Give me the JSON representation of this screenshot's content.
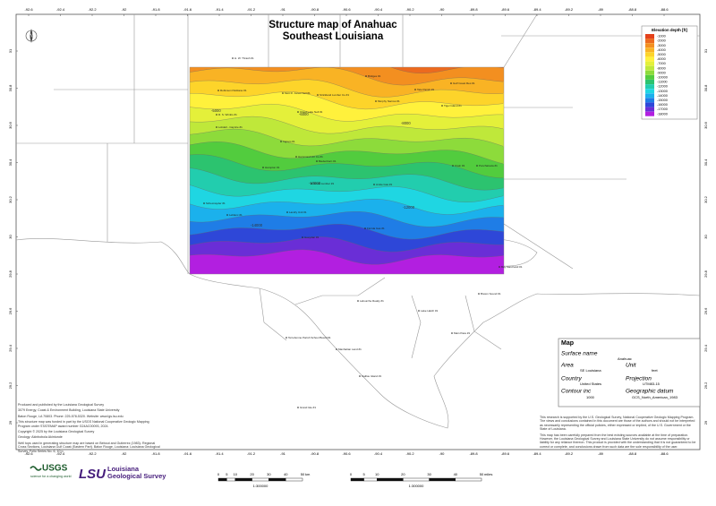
{
  "map": {
    "title": "Structure map of Anahuac",
    "subtitle": "Southeast Louisiana",
    "north": "N",
    "lon_ticks": [
      -92.6,
      -92.4,
      -92.2,
      -92,
      -91.8,
      -91.6,
      -91.4,
      -91.2,
      -91,
      -90.8,
      -90.6,
      -90.4,
      -90.2,
      -90,
      -89.8,
      -89.6,
      -89.4,
      -89.2,
      -89,
      -88.8,
      -88.6
    ],
    "lat_ticks": [
      31,
      30.8,
      30.6,
      30.4,
      30.2,
      30,
      29.8,
      29.6,
      29.4,
      29.2,
      29
    ],
    "contour_labels": [
      -5000,
      -6000,
      -8000,
      -10000,
      -12000,
      -14000
    ],
    "wells": [
      "H. W. Thrash #1",
      "Robinson Parklane #1",
      "Mott R. Jones Nell #1",
      "Strickland Lumber Co #1",
      "Bridges #1",
      "Tate Parish #1",
      "Gulf Coast Res #1",
      "R. S. Wimbs #1",
      "Cloud Lake Nell #1",
      "Murphy Narrow #1",
      "Tiger Island #1",
      "Lobdell - Caprice #1",
      "Ingram #1",
      "Hampton #1",
      "Biedenharn #1",
      "Hammond Lbr Co #1",
      "Crain #1",
      "Ponchatoula #1",
      "Jones Lumber #1",
      "Amite Gas #1",
      "Landry Unit #1",
      "Schexnayder #1",
      "Leblanc #1",
      "Florida Gas #1",
      "Gueydan #1",
      "Bay Marchand #1",
      "Breton Sound #1",
      "Lake Hatch #1",
      "Lafourche Realty #1",
      "Terrebonne Parish School Board #1",
      "Manhattan Land #1",
      "Caillou Island #1",
      "Grand Isle #1",
      "Main Pass #1"
    ]
  },
  "legend": {
    "title": "Elevation depth [ft]",
    "levels": [
      -1000,
      -2000,
      -3000,
      -4000,
      -5000,
      -6000,
      -7000,
      -8000,
      -9000,
      -10000,
      -11000,
      -12000,
      -13000,
      -14000,
      -15000,
      -16000,
      -17000,
      -18000
    ],
    "colors": [
      "#e4421c",
      "#ec6a1e",
      "#f38f20",
      "#f9b324",
      "#fdd42a",
      "#fff13c",
      "#e4f03a",
      "#bfe83a",
      "#8ddb3b",
      "#52cc3e",
      "#2cc36f",
      "#22cdae",
      "#1fd6e2",
      "#1bb1ec",
      "#1f7de6",
      "#2e47d8",
      "#6a2ed6",
      "#b21fe0"
    ]
  },
  "info": {
    "heading": "Map",
    "surface_label": "Surface name",
    "surface": "Anahuac",
    "area_label": "Area",
    "area": "SE Louisiana",
    "unit_label": "Unit",
    "unit": "feet",
    "country_label": "Country",
    "country": "United States",
    "projection_label": "Projection",
    "projection": "UTM83-15",
    "contour_label": "Contour inc",
    "contour": "1000",
    "datum_label": "Geographic datum",
    "datum": "GCS_North_American_1983"
  },
  "credits": [
    "Produced and published by the Louisiana Geological Survey",
    "3079 Energy, Coast & Environment Building, Louisiana State University",
    "Baton Rouge, LA 70803. Phone: 225-578-5320. Website: www.lgs.lsu.edu",
    "This structure map was funded in part by the USGS National Cooperative Geologic Mapping Program under STATEMAP award number G24AC00093, 2024.",
    "Copyright © 2025 by the Louisiana Geological Survey",
    "Geology: Akinbobola Akintunde",
    "Well tops used in generating structure map are based on Bebout and Gutierrez (1983)- Regional Cross Sections, Louisiana Gulf Coast (Eastern Part). Baton Rouge, Louisiana: Louisiana Geological Survey, Folio Series No. 6, 10 p."
  ],
  "notes": [
    "This research is supported by the U.S. Geological Survey, National Cooperative Geologic Mapping Program. The views and conclusions contained in this document are those of the authors and should not be interpreted as necessarily representing the official policies, either expressed or implied, of the U.S. Government or the State of Louisiana.",
    "This map has been carefully prepared from the best existing sources available at the time of preparation. However, the Louisiana Geological Survey and Louisiana State University do not assume responsibility or liability for any reliance thereon. This product is provided with the understanding that it is not guaranteed to be correct or complete, and conclusions drawn from such data are the sole responsibility of the user."
  ],
  "logos": {
    "usgs": "USGS",
    "usgs_tag": "science for a changing world",
    "lsu": "LSU",
    "lgs": "Louisiana Geological Survey"
  },
  "scale": {
    "km_ticks": [
      0,
      5,
      10,
      20,
      30,
      40,
      50
    ],
    "km_unit": "km",
    "mile_ticks": [
      0,
      5,
      10,
      20,
      30,
      40,
      50
    ],
    "mile_unit": "miles",
    "ratio": "1:300000"
  }
}
